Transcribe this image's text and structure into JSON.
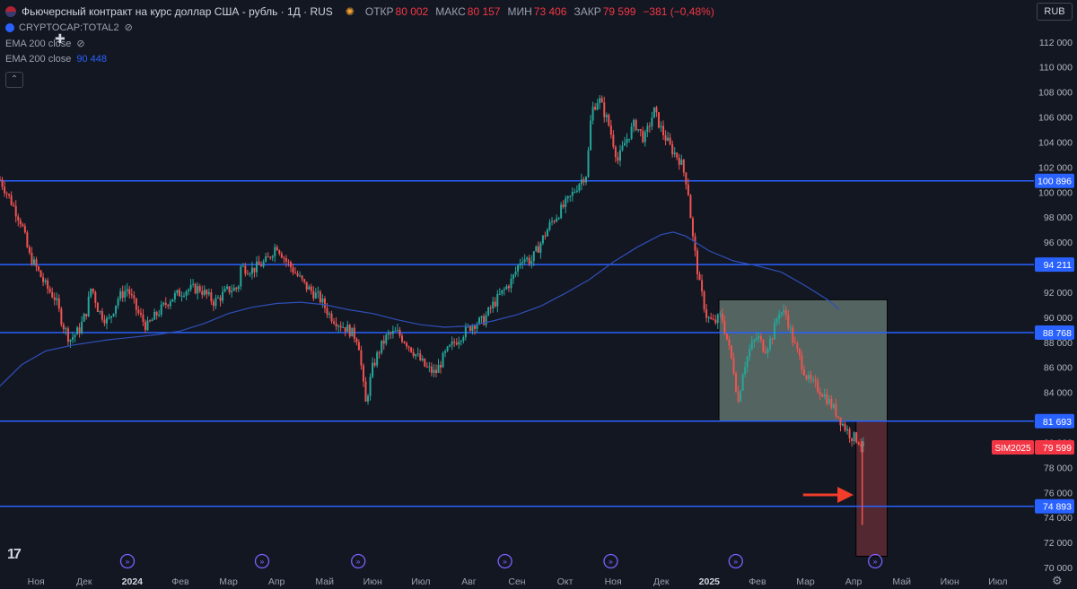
{
  "header": {
    "title": "Фьючерсный контракт на курс доллар США - рубль · 1Д · RUS",
    "open_label": "ОТКР",
    "open_value": "80 002",
    "high_label": "МАКС",
    "high_value": "80 157",
    "low_label": "МИН",
    "low_value": "73 406",
    "close_label": "ЗАКР",
    "close_value": "79 599",
    "change": "−381 (−0,48%)"
  },
  "indicators": {
    "compare_symbol": "CRYPTOCAP:TOTAL2",
    "ema1_label": "EMA 200 close",
    "ema2_label": "EMA 200 close",
    "ema2_value": "90 448"
  },
  "currency_button": "RUB",
  "colors": {
    "background": "#131722",
    "up": "#26a69a",
    "down": "#ef5350",
    "level_line": "#2962ff",
    "ema": "#2f4fb8",
    "price_label": "#f23645",
    "green_box": "#6b7f75",
    "red_box": "#6a2f35",
    "arrow": "#f23d2b"
  },
  "chart_data": {
    "type": "candlestick",
    "title": "Фьючерсный контракт на курс доллар США - рубль · 1Д · RUS",
    "y_ticks": [
      "112 000",
      "110 000",
      "108 000",
      "106 000",
      "104 000",
      "102 000",
      "100 000",
      "98 000",
      "96 000",
      "94 000",
      "92 000",
      "90 000",
      "88 000",
      "86 000",
      "84 000",
      "82 000",
      "80 000",
      "78 000",
      "76 000",
      "74 000",
      "72 000",
      "70 000"
    ],
    "y_range": [
      69500,
      113200
    ],
    "x_labels": [
      "Ноя",
      "Дек",
      "2024",
      "Фев",
      "Мар",
      "Апр",
      "Май",
      "Июн",
      "Июл",
      "Авг",
      "Сен",
      "Окт",
      "Ноя",
      "Дек",
      "2025",
      "Фев",
      "Мар",
      "Апр",
      "Май",
      "Июн",
      "Июл"
    ],
    "x_label_months": [
      1,
      2,
      3,
      4,
      5,
      6,
      7,
      8,
      9,
      10,
      11,
      12,
      13,
      14,
      15,
      16,
      17,
      18,
      19,
      20,
      21
    ],
    "bold_x_labels": [
      "2024",
      "2025"
    ],
    "x_range_months": [
      0.25,
      21.75
    ],
    "price_path": [
      [
        0.25,
        101000
      ],
      [
        0.45,
        99500
      ],
      [
        0.7,
        97500
      ],
      [
        0.85,
        95000
      ],
      [
        1.0,
        94000
      ],
      [
        1.2,
        92500
      ],
      [
        1.4,
        91500
      ],
      [
        1.55,
        89500
      ],
      [
        1.7,
        88200
      ],
      [
        1.9,
        89000
      ],
      [
        2.05,
        90500
      ],
      [
        2.15,
        92500
      ],
      [
        2.3,
        90500
      ],
      [
        2.5,
        89600
      ],
      [
        2.7,
        91500
      ],
      [
        2.9,
        92300
      ],
      [
        3.1,
        90500
      ],
      [
        3.3,
        89200
      ],
      [
        3.5,
        90200
      ],
      [
        3.8,
        91500
      ],
      [
        4.1,
        92200
      ],
      [
        4.4,
        92300
      ],
      [
        4.7,
        91200
      ],
      [
        5.0,
        92200
      ],
      [
        5.2,
        92300
      ],
      [
        5.25,
        94000
      ],
      [
        5.5,
        93800
      ],
      [
        5.8,
        94500
      ],
      [
        6.0,
        95800
      ],
      [
        6.2,
        94500
      ],
      [
        6.4,
        93500
      ],
      [
        6.6,
        92500
      ],
      [
        6.9,
        91500
      ],
      [
        7.1,
        90200
      ],
      [
        7.3,
        89500
      ],
      [
        7.5,
        89000
      ],
      [
        7.7,
        88200
      ],
      [
        7.85,
        83000
      ],
      [
        8.0,
        86000
      ],
      [
        8.15,
        87500
      ],
      [
        8.3,
        88500
      ],
      [
        8.5,
        88800
      ],
      [
        8.7,
        88000
      ],
      [
        8.9,
        87000
      ],
      [
        9.1,
        86000
      ],
      [
        9.3,
        85500
      ],
      [
        9.5,
        87000
      ],
      [
        9.7,
        88000
      ],
      [
        9.9,
        88800
      ],
      [
        10.1,
        89500
      ],
      [
        10.3,
        89700
      ],
      [
        10.5,
        91000
      ],
      [
        10.7,
        92000
      ],
      [
        10.9,
        93000
      ],
      [
        11.1,
        94800
      ],
      [
        11.3,
        94500
      ],
      [
        11.5,
        96000
      ],
      [
        11.7,
        97500
      ],
      [
        11.9,
        98500
      ],
      [
        12.1,
        99500
      ],
      [
        12.3,
        100800
      ],
      [
        12.45,
        101500
      ],
      [
        12.55,
        106500
      ],
      [
        12.7,
        107500
      ],
      [
        12.9,
        105500
      ],
      [
        13.1,
        102500
      ],
      [
        13.25,
        104000
      ],
      [
        13.45,
        105500
      ],
      [
        13.65,
        104200
      ],
      [
        13.85,
        106500
      ],
      [
        14.0,
        105000
      ],
      [
        14.2,
        103500
      ],
      [
        14.4,
        102500
      ],
      [
        14.55,
        100500
      ],
      [
        14.65,
        96500
      ],
      [
        14.8,
        92500
      ],
      [
        14.95,
        90000
      ],
      [
        15.1,
        89500
      ],
      [
        15.25,
        90200
      ],
      [
        15.35,
        88500
      ],
      [
        15.5,
        86000
      ],
      [
        15.6,
        83200
      ],
      [
        15.7,
        85800
      ],
      [
        15.85,
        87500
      ],
      [
        16.0,
        88500
      ],
      [
        16.15,
        87400
      ],
      [
        16.3,
        88400
      ],
      [
        16.45,
        90500
      ],
      [
        16.6,
        90200
      ],
      [
        16.75,
        88000
      ],
      [
        16.9,
        86500
      ],
      [
        17.05,
        85000
      ],
      [
        17.2,
        84500
      ],
      [
        17.35,
        84000
      ],
      [
        17.5,
        83200
      ],
      [
        17.65,
        82300
      ],
      [
        17.8,
        81300
      ],
      [
        17.95,
        80500
      ],
      [
        18.1,
        80200
      ],
      [
        18.2,
        79600
      ]
    ],
    "price_range_months": [
      0.25,
      18.2
    ],
    "ema_200": [
      [
        0.25,
        84500
      ],
      [
        0.7,
        86200
      ],
      [
        1.2,
        87300
      ],
      [
        1.8,
        87800
      ],
      [
        2.5,
        88200
      ],
      [
        3.0,
        88400
      ],
      [
        3.5,
        88600
      ],
      [
        4.0,
        88900
      ],
      [
        4.5,
        89500
      ],
      [
        5.0,
        90300
      ],
      [
        5.5,
        90800
      ],
      [
        6.0,
        91100
      ],
      [
        6.5,
        91200
      ],
      [
        7.0,
        91000
      ],
      [
        7.5,
        90600
      ],
      [
        8.0,
        90300
      ],
      [
        8.5,
        89800
      ],
      [
        9.0,
        89400
      ],
      [
        9.5,
        89200
      ],
      [
        10.0,
        89300
      ],
      [
        10.5,
        89700
      ],
      [
        11.0,
        90200
      ],
      [
        11.5,
        90900
      ],
      [
        12.0,
        91900
      ],
      [
        12.5,
        93000
      ],
      [
        13.0,
        94400
      ],
      [
        13.5,
        95600
      ],
      [
        14.0,
        96600
      ],
      [
        14.25,
        96800
      ],
      [
        14.5,
        96500
      ],
      [
        15.0,
        95300
      ],
      [
        15.5,
        94500
      ],
      [
        16.0,
        94100
      ],
      [
        16.5,
        93600
      ],
      [
        17.0,
        92500
      ],
      [
        17.5,
        91300
      ],
      [
        17.7,
        90600
      ]
    ],
    "horizontal_levels": [
      {
        "value": 100896,
        "label": "100 896"
      },
      {
        "value": 94211,
        "label": "94 211"
      },
      {
        "value": 88768,
        "label": "88 768"
      },
      {
        "value": 81693,
        "label": "81 693"
      },
      {
        "value": 74893,
        "label": "74 893"
      }
    ],
    "current_price": {
      "symbol": "SIM2025",
      "value": 79599,
      "label": "79 599"
    },
    "zones": [
      {
        "name": "green",
        "x1": 15.2,
        "x2": 18.7,
        "y1": 81700,
        "y2": 91400
      },
      {
        "name": "red",
        "x1": 18.05,
        "x2": 18.7,
        "y1": 70900,
        "y2": 81700
      }
    ],
    "arrow": {
      "from": [
        16.95,
        75800
      ],
      "to": [
        18.0,
        75800
      ]
    },
    "spike": {
      "x": 18.18,
      "low": 73406
    },
    "event_marker_months": [
      2.9,
      5.7,
      7.7,
      10.75,
      12.95,
      15.55,
      18.45
    ],
    "grid": true,
    "legend": "top-left"
  }
}
